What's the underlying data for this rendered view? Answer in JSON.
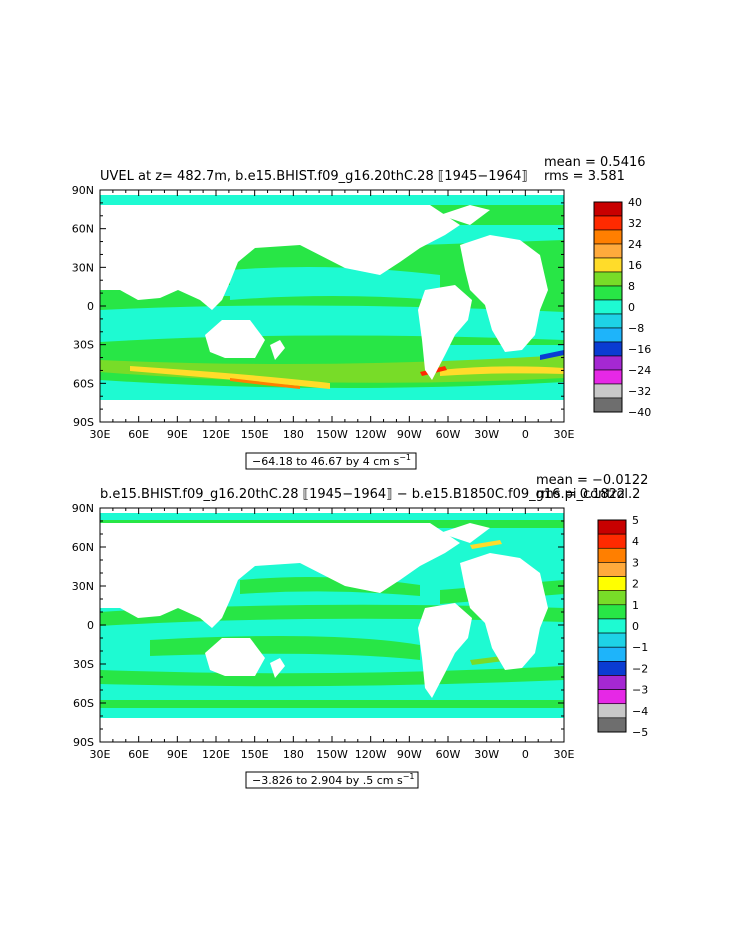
{
  "panels": [
    {
      "title": "UVEL at z= 482.7m, b.e15.BHIST.f09_g16.20thC.28 ⟦1945−1964⟧",
      "mean": "mean = 0.5416",
      "rms": "rms = 3.581",
      "range": "−64.18 to 46.67 by 4 cm s",
      "range_exp": "−1",
      "colorbar_labels": [
        "40",
        "32",
        "24",
        "16",
        "8",
        "0",
        "−8",
        "−16",
        "−24",
        "−32",
        "−40"
      ]
    },
    {
      "title": "b.e15.BHIST.f09_g16.20thC.28 ⟦1945−1964⟧ − b.e15.B1850C.f09_g16.pi_control.2",
      "mean": "mean = −0.0122",
      "rms": "rms = 0.1822",
      "range": "−3.826 to 2.904 by .5 cm s",
      "range_exp": "−1",
      "colorbar_labels": [
        "5",
        "4",
        "3",
        "2",
        "1",
        "0",
        "−1",
        "−2",
        "−3",
        "−4",
        "−5"
      ]
    }
  ],
  "lat_labels": [
    "90N",
    "60N",
    "30N",
    "0",
    "30S",
    "60S",
    "90S"
  ],
  "lon_labels": [
    "30E",
    "60E",
    "90E",
    "120E",
    "150E",
    "180",
    "150W",
    "120W",
    "90W",
    "60W",
    "30W",
    "0",
    "30E"
  ],
  "colors": {
    "scale": [
      "#c80000",
      "#ff2a00",
      "#ff7f00",
      "#ffaa3c",
      "#ffdc2a",
      "#78dc28",
      "#28e646",
      "#1efad2",
      "#1eb4fa",
      "#0a3cd2",
      "#a528d2",
      "#e628e6",
      "#c8c8c8",
      "#6e6e6e"
    ],
    "bar1": [
      "#c80000",
      "#ff2a00",
      "#ff7f00",
      "#ffaa3c",
      "#ffdc2a",
      "#78dc28",
      "#28e646",
      "#1efad2",
      "#1ed2e6",
      "#1eb4fa",
      "#0a3cd2",
      "#a528d2",
      "#e628e6",
      "#c8c8c8",
      "#6e6e6e"
    ],
    "bar2": [
      "#c80000",
      "#ff2a00",
      "#ff7f00",
      "#ffaa3c",
      "#ffff00",
      "#78dc28",
      "#28e646",
      "#1efad2",
      "#1ed2e6",
      "#1eb4fa",
      "#0a3cd2",
      "#a528d2",
      "#e628e6",
      "#c8c8c8",
      "#6e6e6e"
    ]
  }
}
